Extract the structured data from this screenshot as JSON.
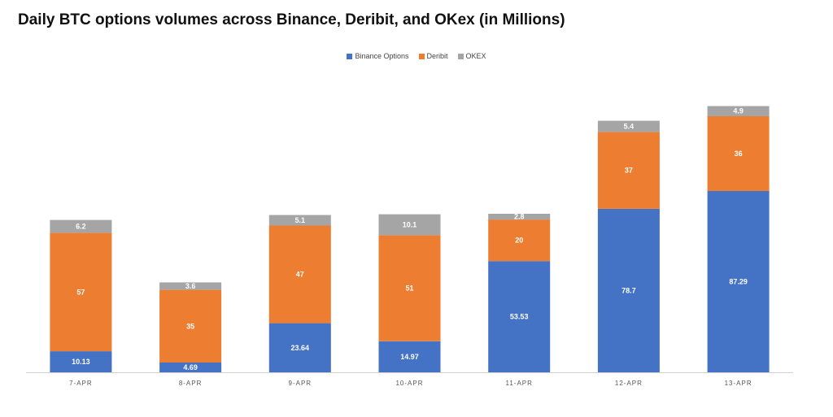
{
  "chart_data": {
    "type": "bar",
    "stacked": true,
    "title": "Daily BTC options volumes across Binance, Deribit, and OKex (in Millions)",
    "categories": [
      "7-APR",
      "8-APR",
      "9-APR",
      "10-APR",
      "11-APR",
      "12-APR",
      "13-APR"
    ],
    "series": [
      {
        "name": "Binance Options",
        "color": "#4472C4",
        "values": [
          10.13,
          4.69,
          23.64,
          14.97,
          53.53,
          78.7,
          87.29
        ],
        "labels": [
          "10.13",
          "4.69",
          "23.64",
          "14.97",
          "53.53",
          "78.7",
          "87.29"
        ]
      },
      {
        "name": "Deribit",
        "color": "#ED7D31",
        "values": [
          57,
          35,
          47,
          51,
          20,
          37,
          36
        ],
        "labels": [
          "57",
          "35",
          "47",
          "51",
          "20",
          "37",
          "36"
        ]
      },
      {
        "name": "OKEX",
        "color": "#A5A5A5",
        "values": [
          6.2,
          3.6,
          5.1,
          10.1,
          2.8,
          5.4,
          4.9
        ],
        "labels": [
          "6.2",
          "3.6",
          "5.1",
          "10.1",
          "2.8",
          "5.4",
          "4.9"
        ]
      }
    ],
    "xlabel": "",
    "ylabel": "",
    "ylim": [
      0,
      130
    ],
    "grid": false,
    "legend_position": "top-center"
  }
}
